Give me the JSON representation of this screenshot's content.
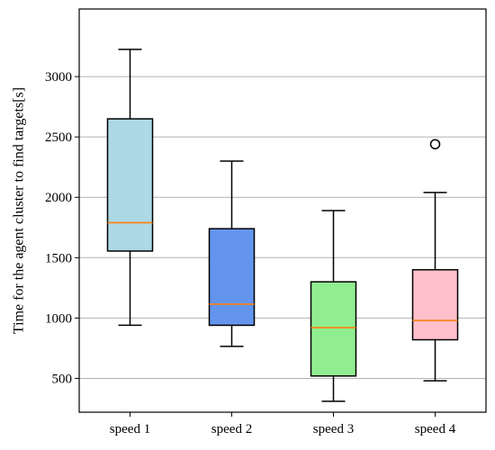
{
  "chart_data": {
    "type": "box",
    "title": "",
    "xlabel": "",
    "ylabel": "Time for the agent cluster to find targets[s]",
    "categories": [
      "speed 1",
      "speed 2",
      "speed 3",
      "speed 4"
    ],
    "ylim": [
      220,
      3560
    ],
    "yticks": [
      500,
      1000,
      1500,
      2000,
      2500,
      3000
    ],
    "grid": "horizontal",
    "median_color": "#ff7f0e",
    "boxes": [
      {
        "name": "speed 1",
        "color": "#add8e6",
        "whisker_low": 940,
        "q1": 1555,
        "median": 1790,
        "q3": 2650,
        "whisker_high": 3225,
        "outliers": []
      },
      {
        "name": "speed 2",
        "color": "#6495ed",
        "whisker_low": 765,
        "q1": 940,
        "median": 1115,
        "q3": 1740,
        "whisker_high": 2300,
        "outliers": []
      },
      {
        "name": "speed 3",
        "color": "#90ee90",
        "whisker_low": 310,
        "q1": 520,
        "median": 920,
        "q3": 1300,
        "whisker_high": 1890,
        "outliers": []
      },
      {
        "name": "speed 4",
        "color": "#ffc0cb",
        "whisker_low": 480,
        "q1": 820,
        "median": 980,
        "q3": 1400,
        "whisker_high": 2040,
        "outliers": [
          2440
        ]
      }
    ]
  }
}
